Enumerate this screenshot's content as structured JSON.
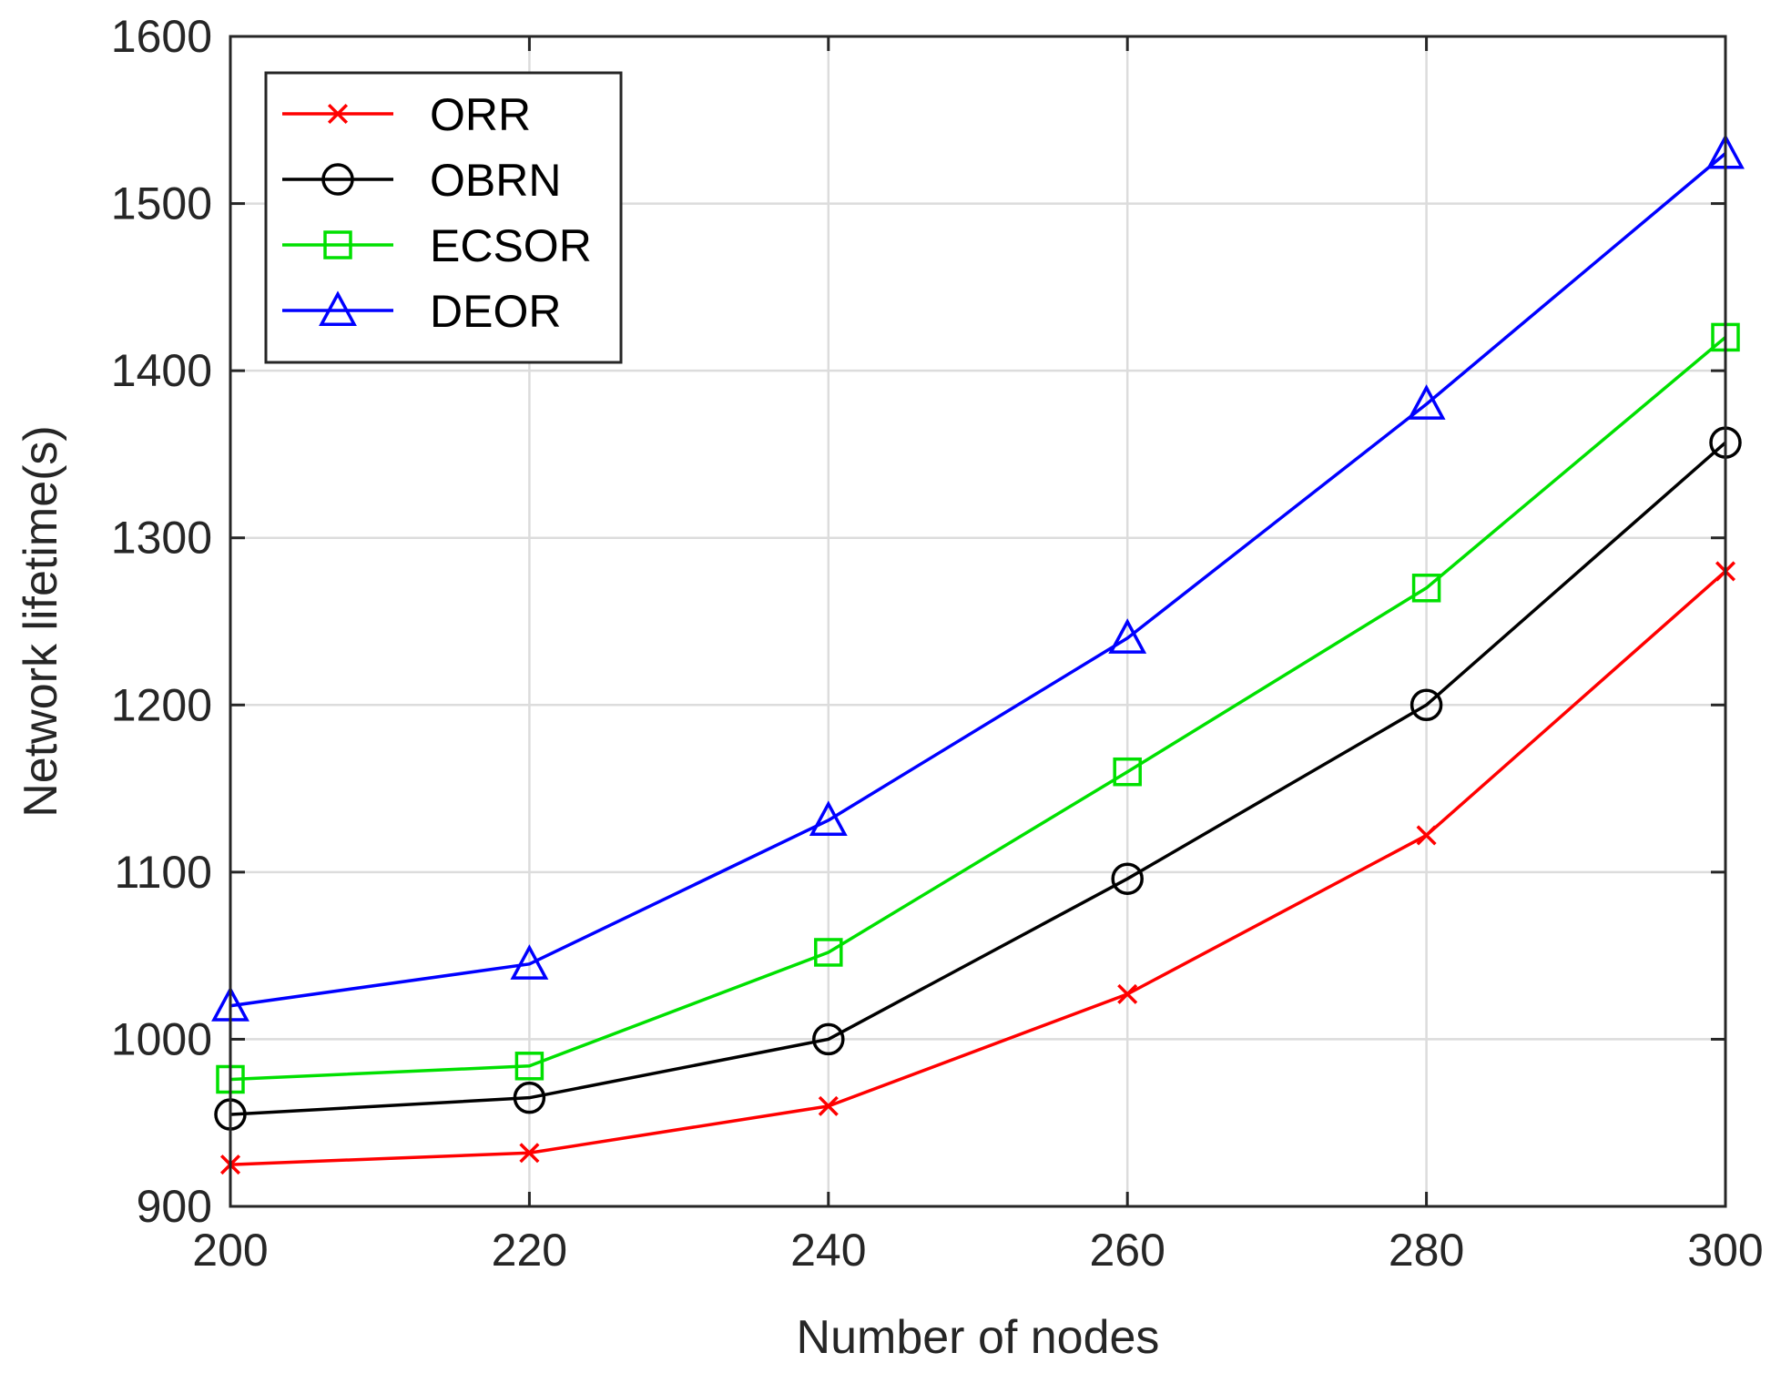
{
  "chart_data": {
    "type": "line",
    "xlabel": "Number of nodes",
    "ylabel": "Network lifetime(s)",
    "xlim": [
      200,
      300
    ],
    "ylim": [
      900,
      1600
    ],
    "x_ticks": [
      200,
      220,
      240,
      260,
      280,
      300
    ],
    "y_ticks": [
      900,
      1000,
      1100,
      1200,
      1300,
      1400,
      1500,
      1600
    ],
    "grid": true,
    "legend_position": "top-left",
    "x": [
      200,
      220,
      240,
      260,
      280,
      300
    ],
    "series": [
      {
        "name": "ORR",
        "color": "#ff0000",
        "marker": "x-mark",
        "values": [
          925,
          932,
          960,
          1027,
          1122,
          1280
        ]
      },
      {
        "name": "OBRN",
        "color": "#000000",
        "marker": "circle",
        "values": [
          955,
          965,
          1000,
          1096,
          1200,
          1357
        ]
      },
      {
        "name": "ECSOR",
        "color": "#00e000",
        "marker": "square",
        "values": [
          976,
          984,
          1052,
          1160,
          1270,
          1420
        ]
      },
      {
        "name": "DEOR",
        "color": "#0000ff",
        "marker": "triangle",
        "values": [
          1020,
          1045,
          1131,
          1240,
          1380,
          1530
        ]
      }
    ]
  }
}
